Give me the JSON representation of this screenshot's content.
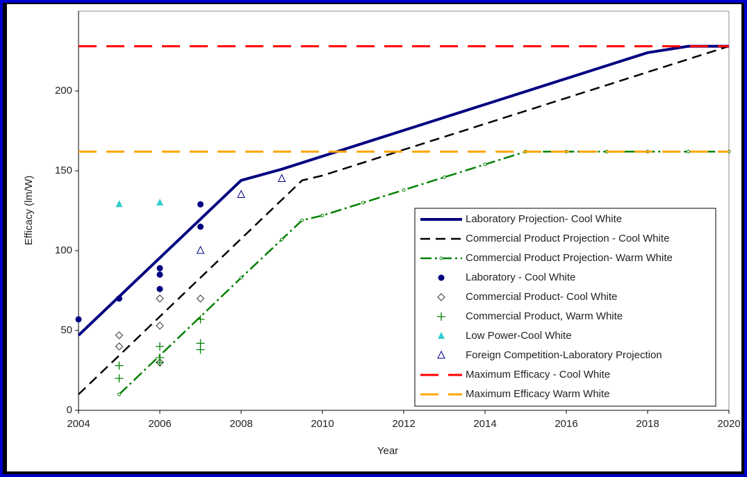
{
  "chart_data": {
    "type": "line",
    "x_label": "Year",
    "y_label": "Efficacy (lm/W)",
    "xlim": [
      2004,
      2020
    ],
    "xticks": [
      2004,
      2006,
      2008,
      2010,
      2012,
      2014,
      2016,
      2018,
      2020
    ],
    "ylim": [
      0,
      250
    ],
    "yticks": [
      0,
      50,
      100,
      150,
      200
    ],
    "legend": "lower right",
    "series": [
      {
        "name": "Laboratory Projection- Cool White",
        "kind": "line",
        "color": "#000080",
        "dash": "solid",
        "x": [
          2004,
          2008,
          2009,
          2018,
          2019,
          2020
        ],
        "values": [
          47,
          144,
          151,
          224,
          228,
          228
        ]
      },
      {
        "name": "Commercial Product Projection - Cool White",
        "kind": "line",
        "color": "#000000",
        "dash": "dashed",
        "x": [
          2004,
          2009.5,
          2010,
          2020
        ],
        "values": [
          10,
          144,
          147,
          228
        ]
      },
      {
        "name": "Commercial Product Projection- Warm White",
        "kind": "line",
        "color": "#008000",
        "dash": "dashdot",
        "marker": "circle",
        "x": [
          2005,
          2008,
          2009,
          2009.5,
          2010,
          2011,
          2012,
          2013,
          2014,
          2015,
          2016,
          2017,
          2018,
          2019,
          2020
        ],
        "values": [
          10,
          83,
          107,
          119,
          122,
          130,
          138,
          146,
          154,
          162,
          162,
          162,
          162,
          162,
          162
        ]
      },
      {
        "name": "Laboratory - Cool White",
        "kind": "scatter",
        "color": "#000080",
        "marker": "dot",
        "x": [
          2004,
          2005,
          2006,
          2006,
          2006,
          2007,
          2007
        ],
        "values": [
          57,
          70,
          89,
          85,
          76,
          129,
          115
        ]
      },
      {
        "name": "Commercial Product- Cool White",
        "kind": "scatter",
        "color": "#333333",
        "marker": "diamond",
        "x": [
          2005,
          2005,
          2006,
          2006,
          2006,
          2007
        ],
        "values": [
          47,
          40,
          70,
          53,
          30,
          70
        ]
      },
      {
        "name": "Commercial Product, Warm White",
        "kind": "scatter",
        "color": "#008000",
        "marker": "plus",
        "x": [
          2005,
          2005,
          2006,
          2006,
          2006,
          2007,
          2007,
          2007
        ],
        "values": [
          28,
          20,
          40,
          33,
          30,
          57,
          42,
          38
        ]
      },
      {
        "name": "Low Power-Cool White",
        "kind": "scatter",
        "color": "#33cccc",
        "marker": "triangle",
        "x": [
          2005,
          2006
        ],
        "values": [
          129,
          130
        ]
      },
      {
        "name": "Foreign Competition-Laboratory Projection",
        "kind": "scatter",
        "color": "#000080",
        "marker": "open-triangle",
        "x": [
          2007,
          2008,
          2009
        ],
        "values": [
          100,
          135,
          145
        ]
      },
      {
        "name": "Maximum Efficacy - Cool White",
        "kind": "line",
        "color": "#ff0000",
        "dash": "longdash",
        "x": [
          2004,
          2020
        ],
        "values": [
          228,
          228
        ]
      },
      {
        "name": "Maximum Efficacy Warm White",
        "kind": "line",
        "color": "#ffa500",
        "dash": "longdash",
        "x": [
          2004,
          2020
        ],
        "values": [
          162,
          162
        ]
      }
    ]
  }
}
